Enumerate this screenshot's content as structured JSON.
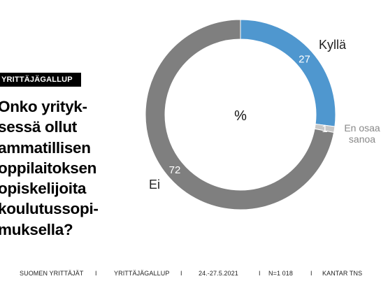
{
  "badge": "YRITTÄJÄGALLUP",
  "question_lines": [
    "Onko yrityk-",
    "sessä ollut",
    "ammatillisen",
    "oppilaitoksen",
    "opiskelijoita",
    "koulutussopi-",
    "muksella?"
  ],
  "footer": [
    "SUOMEN YRITTÄJÄT",
    "I",
    "YRITTÄJÄGALLUP",
    "I",
    "24.-27.5.2021",
    "I",
    "N=1 018",
    "I",
    "KANTAR TNS"
  ],
  "colors": {
    "kylla": "#4f97cf",
    "eos": "#c7c7c7",
    "ei": "#7f7f7f"
  },
  "chart_data": {
    "type": "donut",
    "center_label": "%",
    "slices": [
      {
        "label": "Kyllä",
        "value": 27,
        "color": "#4f97cf"
      },
      {
        "label": "En osaa sanoa",
        "label_lines": [
          "En osaa",
          "sanoa"
        ],
        "value": 1,
        "color": "#c7c7c7"
      },
      {
        "label": "Ei",
        "value": 72,
        "color": "#7f7f7f"
      }
    ]
  }
}
